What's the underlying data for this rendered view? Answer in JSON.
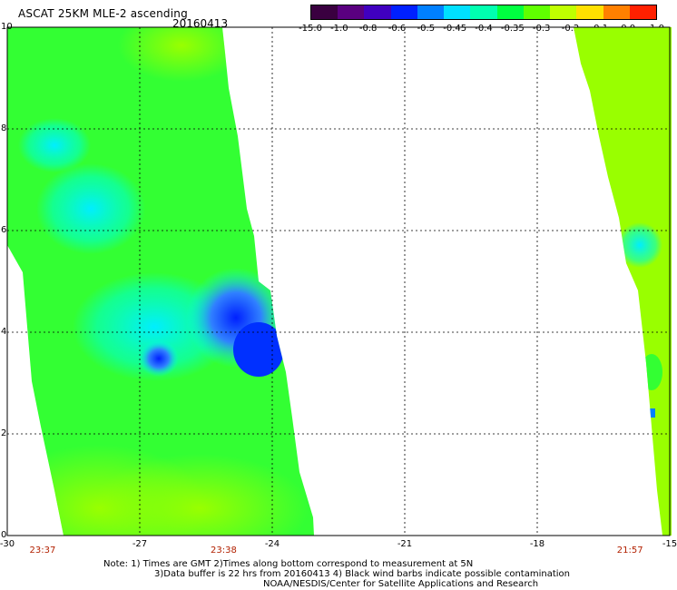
{
  "header": {
    "title": "ASCAT 25KM MLE-2 ascending",
    "date": "20160413"
  },
  "colorbar": {
    "labels": [
      "-15.0",
      "-1.0",
      "-0.8",
      "-0.6",
      "-0.5",
      "-0.45",
      "-0.4",
      "-0.35",
      "-0.3",
      "-0.2",
      "-0.1",
      "0.0",
      "1.0"
    ],
    "colors": [
      "#3a0040",
      "#5a0080",
      "#4000c0",
      "#0020ff",
      "#0080ff",
      "#00e0ff",
      "#00ffb0",
      "#00ff40",
      "#60ff00",
      "#c0ff00",
      "#ffe000",
      "#ff8000",
      "#ff2000"
    ]
  },
  "axes": {
    "x_ticks": [
      "-30",
      "-27",
      "-24",
      "-21",
      "-18",
      "-15"
    ],
    "y_ticks": [
      "0",
      "2",
      "4",
      "6",
      "8",
      "10"
    ],
    "x_range": [
      -30,
      -15
    ],
    "y_range": [
      0,
      10
    ]
  },
  "times": [
    "23:37",
    "23:38",
    "21:57"
  ],
  "notes": {
    "line1": "Note: 1) Times are GMT 2)Times along bottom correspond to measurement at 5N",
    "line2": "3)Data buffer is 22 hrs from 20160413 4) Black wind barbs indicate possible contamination",
    "line3": "NOAA/NESDIS/Center for Satellite Applications and Research"
  },
  "palette": {
    "green": "#33ff33",
    "lime": "#99ff00",
    "cyan": "#00ffee",
    "blue": "#1060ff",
    "darkblue": "#0030ff"
  }
}
